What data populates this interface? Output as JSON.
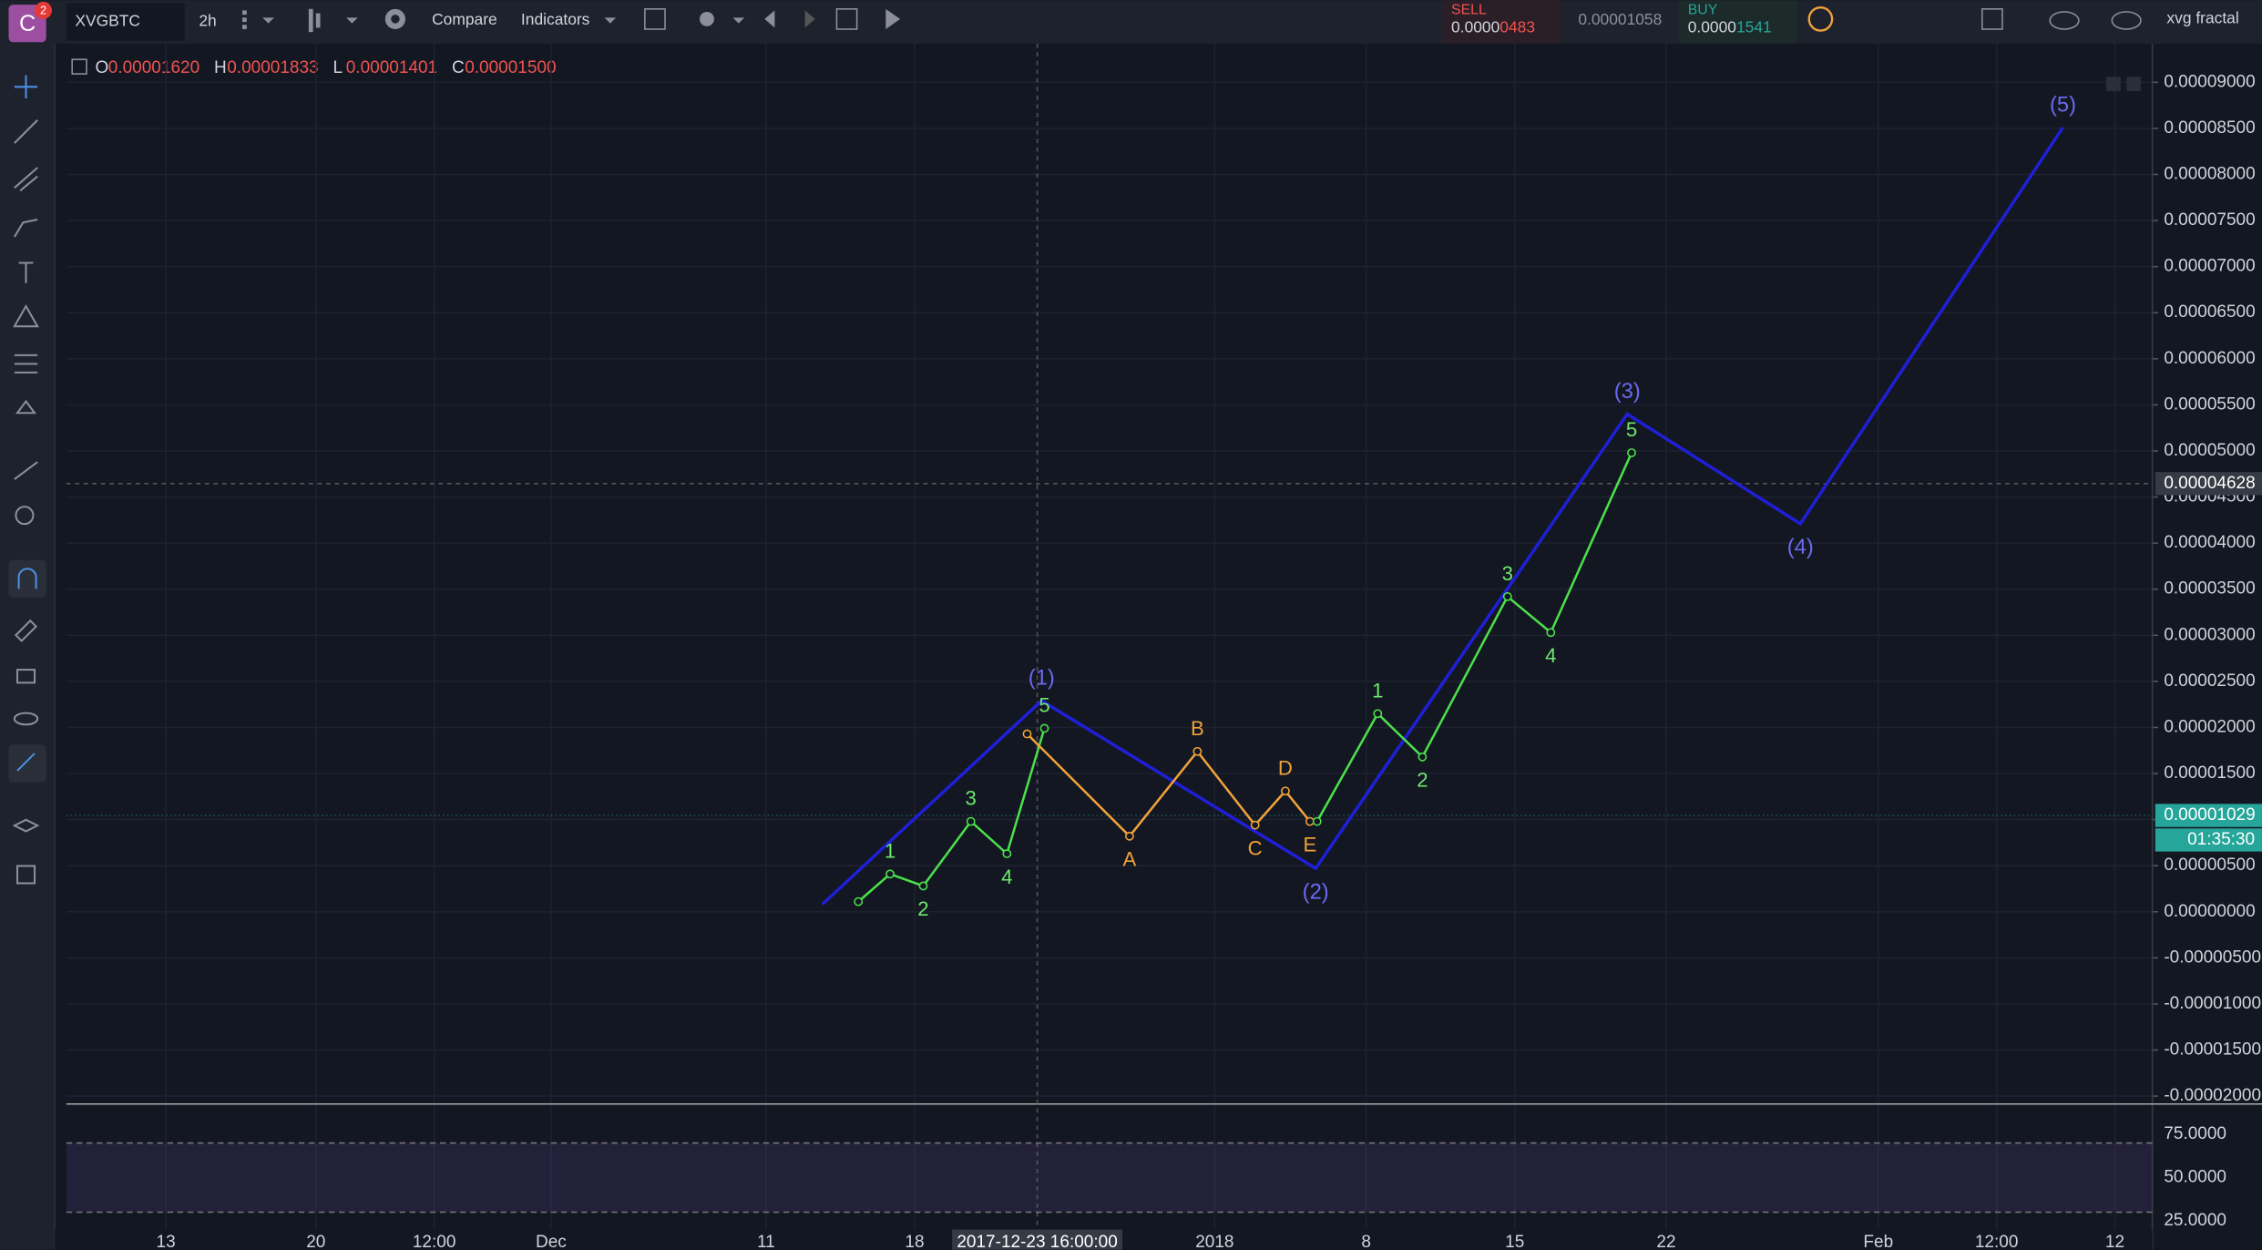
{
  "toolbar": {
    "logo": "C",
    "alert_badge": "2",
    "symbol": "XVGBTC",
    "interval": "2h",
    "compare": "Compare",
    "indicators": "Indicators",
    "sell": {
      "label": "SELL",
      "main": "0.0000",
      "pip": "0483"
    },
    "spread": "0.00001058",
    "buy": {
      "label": "BUY",
      "main": "0.0000",
      "pip": "1541"
    },
    "layout_name": "xvg fractal"
  },
  "legend": [
    {
      "key": "O",
      "value": "0.00001620"
    },
    {
      "key": "H",
      "value": "0.00001833"
    },
    {
      "key": "L",
      "value": "0.00001401"
    },
    {
      "key": "C",
      "value": "0.00001500"
    }
  ],
  "chart_data": {
    "type": "line",
    "ylim": [
      -2.07e-05,
      9.42e-05
    ],
    "yticks": [
      {
        "value": 9e-05,
        "label": "0.00009000"
      },
      {
        "value": 8.5e-05,
        "label": "0.00008500"
      },
      {
        "value": 8e-05,
        "label": "0.00008000"
      },
      {
        "value": 7.5e-05,
        "label": "0.00007500"
      },
      {
        "value": 7e-05,
        "label": "0.00007000"
      },
      {
        "value": 6.5e-05,
        "label": "0.00006500"
      },
      {
        "value": 6e-05,
        "label": "0.00006000"
      },
      {
        "value": 5.5e-05,
        "label": "0.00005500"
      },
      {
        "value": 5e-05,
        "label": "0.00005000"
      },
      {
        "value": 4.5e-05,
        "label": "0.00004500"
      },
      {
        "value": 4e-05,
        "label": "0.00004000"
      },
      {
        "value": 3.5e-05,
        "label": "0.00003500"
      },
      {
        "value": 3e-05,
        "label": "0.00003000"
      },
      {
        "value": 2.5e-05,
        "label": "0.00002500"
      },
      {
        "value": 2e-05,
        "label": "0.00002000"
      },
      {
        "value": 1.5e-05,
        "label": "0.00001500"
      },
      {
        "value": 1e-05,
        "label": "0.00001000"
      },
      {
        "value": 5e-06,
        "label": "0.00000500"
      },
      {
        "value": 0,
        "label": "0.00000000"
      },
      {
        "value": -5e-06,
        "label": "-0.00000500"
      },
      {
        "value": -1e-05,
        "label": "-0.00001000"
      },
      {
        "value": -1.5e-05,
        "label": "-0.00001500"
      },
      {
        "value": -2e-05,
        "label": "-0.00002000"
      }
    ],
    "grid": true,
    "series": [
      {
        "color": "#1f1fd6",
        "label_color": "#6a6af0",
        "values": [
          8e-07,
          2.29e-05,
          4.7e-06,
          5.4e-05,
          4.21e-05,
          8.51e-05
        ],
        "labels": [
          null,
          "(1)",
          "(2)",
          "(3)",
          "(4)",
          "(5)"
        ]
      },
      {
        "color": "#4ce04c",
        "label_color": "#6ee86e",
        "values": [
          1.1e-06,
          4.1e-06,
          2.8e-06,
          9.8e-06,
          6.3e-06,
          1.99e-05
        ],
        "labels": [
          null,
          "1",
          "2",
          "3",
          "4",
          "5"
        ]
      },
      {
        "color": "#f0a23a",
        "label_color": "#f0a23a",
        "values": [
          1.93e-05,
          8.2e-06,
          1.74e-05,
          9.4e-06,
          1.31e-05,
          9.8e-06
        ],
        "labels": [
          null,
          "A",
          "B",
          "C",
          "D",
          "E"
        ]
      },
      {
        "color": "#4ce04c",
        "label_color": "#6ee86e",
        "values": [
          9.8e-06,
          2.15e-05,
          1.68e-05,
          3.42e-05,
          3.03e-05,
          4.98e-05
        ],
        "labels": [
          null,
          "1",
          "2",
          "3",
          "4",
          "5"
        ]
      }
    ]
  },
  "price_tags": {
    "last_price": "0.00001029",
    "countdown": "01:35:30",
    "crosshair_price": "0.00004628"
  },
  "time_axis": {
    "labels": [
      "13",
      "20",
      "12:00",
      "Dec",
      "11",
      "18",
      "2018",
      "8",
      "15",
      "22",
      "Feb",
      "12:00",
      "12"
    ],
    "crosshair": "2017-12-23 16:00:00"
  },
  "rsi_pane": {
    "ylim": [
      20,
      91.7
    ],
    "band": [
      30,
      70
    ],
    "yticks": [
      {
        "value": 75,
        "label": "75.0000"
      },
      {
        "value": 50,
        "label": "50.0000"
      },
      {
        "value": 25,
        "label": "25.0000"
      }
    ]
  }
}
